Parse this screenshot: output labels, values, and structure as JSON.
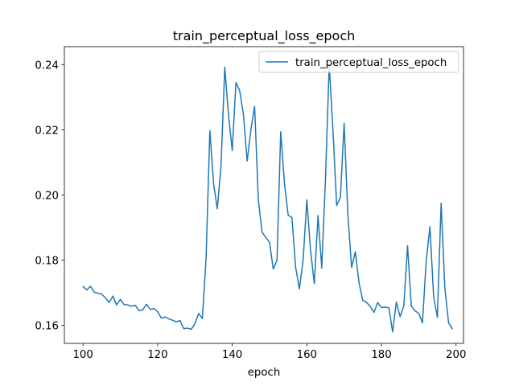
{
  "chart_data": {
    "type": "line",
    "title": "train_perceptual_loss_epoch",
    "xlabel": "epoch",
    "ylabel": "",
    "xlim": [
      95,
      202
    ],
    "ylim": [
      0.1545,
      0.2455
    ],
    "xticks": [
      100,
      120,
      140,
      160,
      180,
      200
    ],
    "yticks": [
      0.16,
      0.18,
      0.2,
      0.22,
      0.24
    ],
    "ytick_labels": [
      "0.16",
      "0.18",
      "0.20",
      "0.22",
      "0.24"
    ],
    "grid": false,
    "legend_position": "upper-right",
    "series": [
      {
        "name": "train_perceptual_loss_epoch",
        "color": "#1f77b4",
        "x": [
          100,
          101,
          102,
          103,
          104,
          105,
          106,
          107,
          108,
          109,
          110,
          111,
          112,
          113,
          114,
          115,
          116,
          117,
          118,
          119,
          120,
          121,
          122,
          123,
          124,
          125,
          126,
          127,
          128,
          129,
          130,
          131,
          132,
          133,
          134,
          135,
          136,
          137,
          138,
          139,
          140,
          141,
          142,
          143,
          144,
          145,
          146,
          147,
          148,
          149,
          150,
          151,
          152,
          153,
          154,
          155,
          156,
          157,
          158,
          159,
          160,
          161,
          162,
          163,
          164,
          165,
          166,
          167,
          168,
          169,
          170,
          171,
          172,
          173,
          174,
          175,
          176,
          177,
          178,
          179,
          180,
          181,
          182,
          183,
          184,
          185,
          186,
          187,
          188,
          189,
          190,
          191,
          192,
          193,
          194,
          195,
          196,
          197,
          198,
          199
        ],
        "y": [
          0.1719,
          0.1709,
          0.172,
          0.1702,
          0.1699,
          0.1696,
          0.1685,
          0.167,
          0.169,
          0.1663,
          0.168,
          0.1664,
          0.1663,
          0.1659,
          0.1662,
          0.1645,
          0.1648,
          0.1665,
          0.1649,
          0.1652,
          0.1642,
          0.1622,
          0.1626,
          0.162,
          0.1616,
          0.1611,
          0.1615,
          0.159,
          0.1592,
          0.1588,
          0.1605,
          0.1637,
          0.1621,
          0.181,
          0.2198,
          0.2035,
          0.1958,
          0.209,
          0.2392,
          0.2245,
          0.2136,
          0.2345,
          0.232,
          0.2248,
          0.2104,
          0.22,
          0.2272,
          0.1985,
          0.1886,
          0.187,
          0.1855,
          0.1773,
          0.18,
          0.2194,
          0.2036,
          0.1938,
          0.1931,
          0.1778,
          0.1712,
          0.18,
          0.1985,
          0.183,
          0.1728,
          0.1937,
          0.1776,
          0.205,
          0.24,
          0.22,
          0.1968,
          0.1993,
          0.222,
          0.194,
          0.1778,
          0.1826,
          0.173,
          0.1677,
          0.1671,
          0.1658,
          0.164,
          0.167,
          0.1655,
          0.1656,
          0.1654,
          0.158,
          0.1672,
          0.1627,
          0.166,
          0.1845,
          0.166,
          0.1645,
          0.1637,
          0.1608,
          0.1798,
          0.1903,
          0.1687,
          0.1625,
          0.1975,
          0.1715,
          0.1608,
          0.159
        ]
      }
    ]
  }
}
